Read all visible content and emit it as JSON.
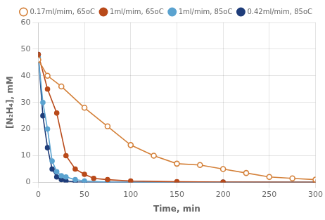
{
  "chart_data": {
    "type": "line",
    "x_label": "Time, min",
    "y_label": "[N₂H₄], mM",
    "series": [
      {
        "name": "0.17ml/mim, 65oC",
        "color": "#d4813a",
        "marker": "open_circle",
        "x": [
          0,
          10,
          25,
          50,
          75,
          100,
          125,
          150,
          175,
          200,
          225,
          250,
          275,
          300
        ],
        "values": [
          46,
          40,
          36,
          28,
          21,
          14,
          10,
          7,
          6.5,
          5,
          3.5,
          2,
          1.5,
          1
        ]
      },
      {
        "name": "1ml/mim, 65oC",
        "color": "#b94a1a",
        "marker": "circle",
        "x": [
          0,
          10,
          20,
          30,
          40,
          50,
          60,
          75,
          100,
          150,
          200,
          300
        ],
        "values": [
          48,
          35,
          26,
          10,
          5,
          3,
          1.5,
          1,
          0.5,
          0.2,
          0.1,
          0
        ]
      },
      {
        "name": "1ml/mim, 85oC",
        "color": "#5ba3d0",
        "marker": "circle",
        "x": [
          0,
          5,
          10,
          15,
          20,
          25,
          30,
          40,
          50,
          75,
          100,
          150,
          200,
          300
        ],
        "values": [
          47,
          30,
          20,
          8,
          4,
          2.5,
          2,
          1.0,
          0.5,
          0.1,
          0.05,
          0,
          0,
          0
        ]
      },
      {
        "name": "0.42ml/mim, 85oC",
        "color": "#1f3d7a",
        "marker": "circle",
        "x": [
          0,
          5,
          10,
          15,
          20,
          25,
          30,
          40,
          50,
          75,
          100,
          150,
          200,
          300
        ],
        "values": [
          48,
          25,
          13,
          5,
          2,
          1,
          0.5,
          0.15,
          0.05,
          0,
          0,
          0,
          0,
          0
        ]
      }
    ],
    "xlim": [
      0,
      300
    ],
    "ylim": [
      0,
      60
    ],
    "xticks": [
      0,
      50,
      100,
      150,
      200,
      250,
      300
    ],
    "yticks": [
      0,
      10,
      20,
      30,
      40,
      50,
      60
    ],
    "grid": true,
    "legend": "upper right"
  }
}
